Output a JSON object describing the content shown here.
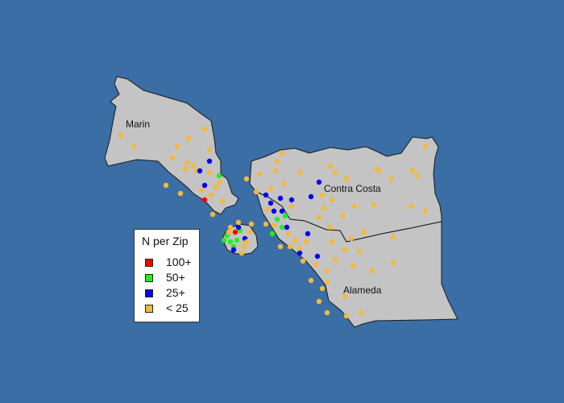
{
  "legend": {
    "title": "N per Zip",
    "items": [
      {
        "label": "100+",
        "color": "#ff0000"
      },
      {
        "label": "50+",
        "color": "#22ee22"
      },
      {
        "label": "25+",
        "color": "#0000ee"
      },
      {
        "label": "< 25",
        "color": "#f4b93b"
      }
    ]
  },
  "regions": [
    {
      "name": "Marin"
    },
    {
      "name": "Contra Costa"
    },
    {
      "name": "Alameda"
    }
  ],
  "colors": {
    "background": "#3a6ea5",
    "land": "#c4c4c4",
    "outline": "#1a1a1a"
  }
}
